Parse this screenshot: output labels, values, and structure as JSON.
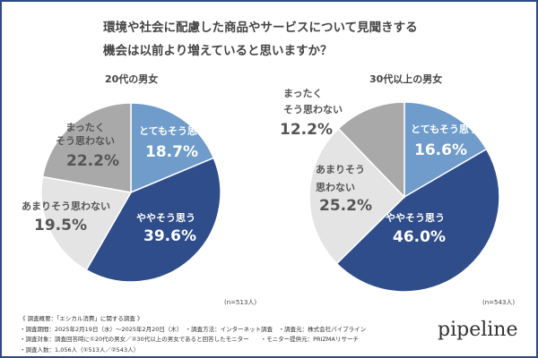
{
  "title_lines": [
    "環境や社会に配慮した商品やサービスについて見聞きする",
    "機会は以前より増えていると思いますか？"
  ],
  "chart_data": [
    {
      "type": "pie",
      "title": "20代の男女",
      "note": "(n=513人)",
      "categories": [
        "とてもそう思う",
        "ややそう思う",
        "あまりそう思わない",
        "まったく そう思わない"
      ],
      "values": [
        18.7,
        39.6,
        19.5,
        22.2
      ],
      "labels": [
        "18.7%",
        "39.6%",
        "19.5%",
        "22.2%"
      ],
      "colors": [
        "#6f9ccb",
        "#2f4d8a",
        "#e4e4e4",
        "#a9a9a9"
      ]
    },
    {
      "type": "pie",
      "title": "30代以上の男女",
      "note": "(n=543人)",
      "categories": [
        "とてもそう思う",
        "ややそう思う",
        "あまりそう思わない",
        "まったく そう思わない"
      ],
      "values": [
        16.6,
        46.0,
        25.2,
        12.2
      ],
      "labels": [
        "16.6%",
        "46.0%",
        "25.2%",
        "12.2%"
      ],
      "colors": [
        "#6f9ccb",
        "#2f4d8a",
        "#e4e4e4",
        "#a9a9a9"
      ]
    }
  ],
  "pie2_split": {
    "aa": "あまりそう",
    "ab": "思わない",
    "ma": "まったく",
    "mb": "そう思わない"
  },
  "pie1_split": {
    "ma": "まったく",
    "mb": "そう思わない"
  },
  "footer": [
    "《 調査概要：「エシカル消費」に関する調査 》",
    "・調査期間：2025年2月19日（水）〜2025年2月20日（木）　・調査方法：インターネット調査　・調査元：株式会社パイプライン",
    "・調査対象：調査回答時に①20代の男女／②30代以上の男女であると回答したモニター　　・モニター提供元：PRIZMAリサーチ",
    "・調査人数：1,056人（①513人／②543人）"
  ],
  "logo": "pipeline"
}
